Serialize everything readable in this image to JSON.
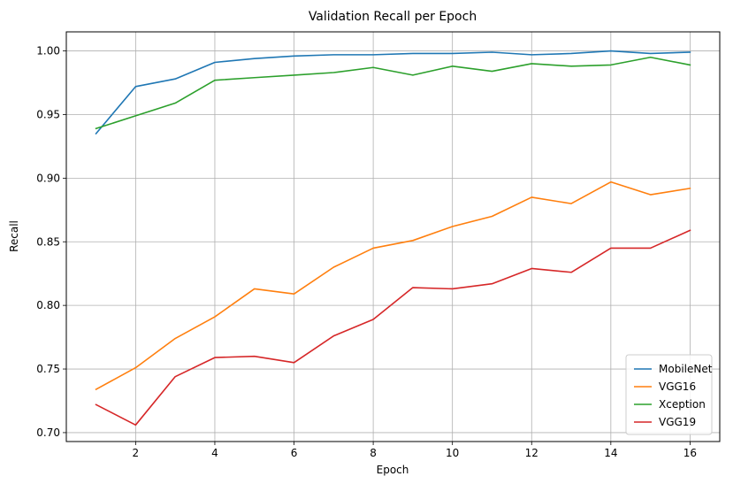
{
  "chart_data": {
    "type": "line",
    "title": "Validation Recall per Epoch",
    "xlabel": "Epoch",
    "ylabel": "Recall",
    "x": [
      1,
      2,
      3,
      4,
      5,
      6,
      7,
      8,
      9,
      10,
      11,
      12,
      13,
      14,
      15,
      16
    ],
    "xlim": [
      0.25,
      16.75
    ],
    "ylim": [
      0.693,
      1.015
    ],
    "xticks": [
      2,
      4,
      6,
      8,
      10,
      12,
      14,
      16
    ],
    "yticks": [
      0.7,
      0.75,
      0.8,
      0.85,
      0.9,
      0.95,
      1.0
    ],
    "ytick_labels": [
      "0.70",
      "0.75",
      "0.80",
      "0.85",
      "0.90",
      "0.95",
      "1.00"
    ],
    "grid": true,
    "legend_position": "bottom-right",
    "series": [
      {
        "name": "MobileNet",
        "color": "#1f77b4",
        "values": [
          0.935,
          0.972,
          0.978,
          0.991,
          0.994,
          0.996,
          0.997,
          0.997,
          0.998,
          0.998,
          0.999,
          0.997,
          0.998,
          1.0,
          0.998,
          0.999
        ]
      },
      {
        "name": "VGG16",
        "color": "#ff7f0e",
        "values": [
          0.734,
          0.751,
          0.774,
          0.791,
          0.813,
          0.809,
          0.83,
          0.845,
          0.851,
          0.862,
          0.87,
          0.885,
          0.88,
          0.897,
          0.887,
          0.892
        ]
      },
      {
        "name": "Xception",
        "color": "#2ca02c",
        "values": [
          0.939,
          0.949,
          0.959,
          0.977,
          0.979,
          0.981,
          0.983,
          0.987,
          0.981,
          0.988,
          0.984,
          0.99,
          0.988,
          0.989,
          0.995,
          0.989
        ]
      },
      {
        "name": "VGG19",
        "color": "#d62728",
        "values": [
          0.722,
          0.706,
          0.744,
          0.759,
          0.76,
          0.755,
          0.776,
          0.789,
          0.814,
          0.813,
          0.817,
          0.829,
          0.826,
          0.845,
          0.845,
          0.859
        ]
      }
    ]
  }
}
